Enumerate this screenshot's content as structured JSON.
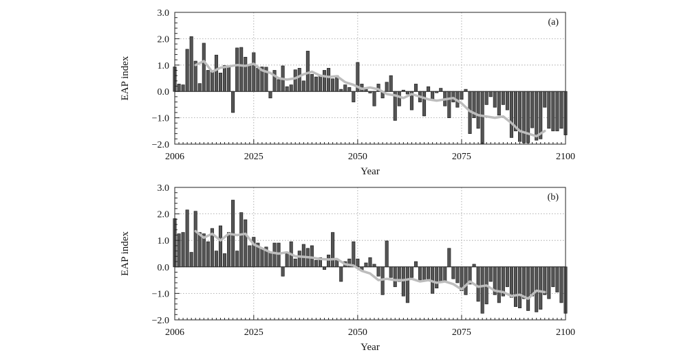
{
  "chart_data": [
    {
      "type": "bar",
      "panel_label": "(a)",
      "xlabel": "Year",
      "ylabel": "EAP index",
      "xlim": [
        2006,
        2100
      ],
      "ylim": [
        -2.0,
        3.0
      ],
      "xticks": [
        2006,
        2025,
        2050,
        2075,
        2100
      ],
      "yticks": [
        -2.0,
        -1.0,
        0.0,
        1.0,
        2.0,
        3.0
      ],
      "ytick_labels": [
        "−2.0",
        "−1.0",
        "0.0",
        "1.0",
        "2.0",
        "3.0"
      ],
      "grid": true,
      "years_start": 2006,
      "years_end": 2100,
      "bar_values": [
        0.93,
        0.28,
        0.25,
        1.6,
        2.08,
        1.15,
        0.3,
        1.83,
        0.8,
        0.75,
        1.38,
        0.7,
        0.98,
        0.95,
        -0.8,
        1.65,
        1.67,
        1.3,
        0.98,
        1.47,
        0.88,
        0.93,
        0.92,
        -0.25,
        0.8,
        0.45,
        0.97,
        0.18,
        0.25,
        0.82,
        0.88,
        0.4,
        1.53,
        0.65,
        0.55,
        0.6,
        0.8,
        0.88,
        0.48,
        0.6,
        0.08,
        0.25,
        0.15,
        -0.4,
        1.1,
        0.28,
        0.08,
        -0.06,
        -0.55,
        0.28,
        -0.25,
        0.35,
        0.6,
        -1.1,
        -0.55,
        0.05,
        -0.1,
        -0.7,
        0.28,
        -0.4,
        -0.93,
        0.18,
        -0.35,
        -0.05,
        0.12,
        -0.55,
        -1.0,
        -0.4,
        -0.6,
        -0.3,
        0.08,
        -1.6,
        -1.0,
        -1.4,
        -2.0,
        -0.5,
        -0.2,
        -0.6,
        -0.9,
        -0.5,
        -0.7,
        -1.75,
        -1.5,
        -1.9,
        -1.95,
        -1.95,
        -1.38,
        -1.85,
        -1.8,
        -0.6,
        -1.4,
        -1.5,
        -1.5,
        -1.4,
        -1.65
      ],
      "smooth_x": [
        2011,
        2013,
        2015,
        2017,
        2019,
        2021,
        2023,
        2025,
        2027,
        2029,
        2031,
        2033,
        2035,
        2037,
        2039,
        2041,
        2043,
        2045,
        2047,
        2049,
        2051,
        2053,
        2055,
        2057,
        2059,
        2061,
        2063,
        2065,
        2067,
        2069,
        2071,
        2073,
        2075,
        2077,
        2079,
        2081,
        2083,
        2085,
        2087,
        2089,
        2091,
        2093,
        2095
      ],
      "smooth_values": [
        1.0,
        1.15,
        0.75,
        0.9,
        0.95,
        1.0,
        0.97,
        1.05,
        0.8,
        0.7,
        0.5,
        0.45,
        0.5,
        0.65,
        0.75,
        0.6,
        0.55,
        0.58,
        0.35,
        0.25,
        0.1,
        0.15,
        0.08,
        -0.1,
        -0.15,
        -0.25,
        -0.1,
        -0.2,
        -0.3,
        -0.35,
        -0.3,
        -0.25,
        -0.45,
        -0.75,
        -0.9,
        -0.95,
        -1.0,
        -0.95,
        -1.2,
        -1.5,
        -1.6,
        -1.7,
        -1.5
      ]
    },
    {
      "type": "bar",
      "panel_label": "(b)",
      "xlabel": "Year",
      "ylabel": "EAP index",
      "xlim": [
        2006,
        2100
      ],
      "ylim": [
        -2.0,
        3.0
      ],
      "xticks": [
        2006,
        2025,
        2050,
        2075,
        2100
      ],
      "yticks": [
        -2.0,
        -1.0,
        0.0,
        1.0,
        2.0,
        3.0
      ],
      "ytick_labels": [
        "−2.0",
        "−1.0",
        "0.0",
        "1.0",
        "2.0",
        "3.0"
      ],
      "grid": true,
      "years_start": 2006,
      "years_end": 2100,
      "bar_values": [
        1.82,
        1.25,
        1.3,
        2.15,
        0.55,
        2.1,
        1.3,
        1.25,
        0.95,
        1.45,
        0.6,
        1.55,
        0.5,
        1.3,
        2.52,
        0.6,
        2.05,
        1.78,
        0.8,
        1.12,
        0.9,
        0.7,
        0.75,
        0.55,
        0.9,
        0.9,
        -0.35,
        0.5,
        0.95,
        0.3,
        0.6,
        0.85,
        0.7,
        0.8,
        0.25,
        0.35,
        -0.1,
        0.45,
        1.3,
        0.3,
        -0.55,
        0.2,
        0.3,
        0.95,
        0.3,
        -0.15,
        0.15,
        0.35,
        0.1,
        -0.35,
        -1.05,
        0.98,
        -0.4,
        -0.75,
        -0.55,
        -1.1,
        -1.35,
        -0.4,
        0.2,
        -0.5,
        -0.55,
        -0.45,
        -1.0,
        -0.8,
        -0.6,
        -0.55,
        0.7,
        -0.45,
        -0.6,
        -0.9,
        -1.05,
        -0.65,
        0.1,
        -1.3,
        -1.75,
        -1.4,
        -0.55,
        -1.05,
        -1.35,
        -1.1,
        -0.75,
        -1.15,
        -1.5,
        -1.55,
        -1.2,
        -1.65,
        -1.1,
        -1.7,
        -1.6,
        -1.05,
        -1.2,
        -0.75,
        -0.95,
        -1.35,
        -1.75
      ],
      "smooth_x": [
        2011,
        2013,
        2015,
        2017,
        2019,
        2021,
        2023,
        2025,
        2027,
        2029,
        2031,
        2033,
        2035,
        2037,
        2039,
        2041,
        2043,
        2045,
        2047,
        2049,
        2051,
        2053,
        2055,
        2057,
        2059,
        2061,
        2063,
        2065,
        2067,
        2069,
        2071,
        2073,
        2075,
        2077,
        2079,
        2081,
        2083,
        2085,
        2087,
        2089,
        2091,
        2093,
        2095
      ],
      "smooth_values": [
        1.35,
        1.1,
        1.25,
        1.0,
        1.25,
        1.2,
        1.25,
        0.85,
        0.7,
        0.55,
        0.5,
        0.55,
        0.4,
        0.38,
        0.35,
        0.3,
        0.28,
        0.3,
        0.1,
        0.05,
        -0.15,
        -0.25,
        -0.5,
        -0.45,
        -0.5,
        -0.5,
        -0.45,
        -0.55,
        -0.5,
        -0.6,
        -0.55,
        -0.65,
        -0.85,
        -0.55,
        -0.75,
        -0.7,
        -0.9,
        -0.95,
        -1.1,
        -1.05,
        -1.2,
        -0.9,
        -0.95
      ]
    }
  ],
  "colors": {
    "bar_fill": "#555555",
    "bar_stroke": "#1e1e1e",
    "smooth_line": "#bdbdbd",
    "grid": "#9a9a9a",
    "axis": "#222222"
  }
}
